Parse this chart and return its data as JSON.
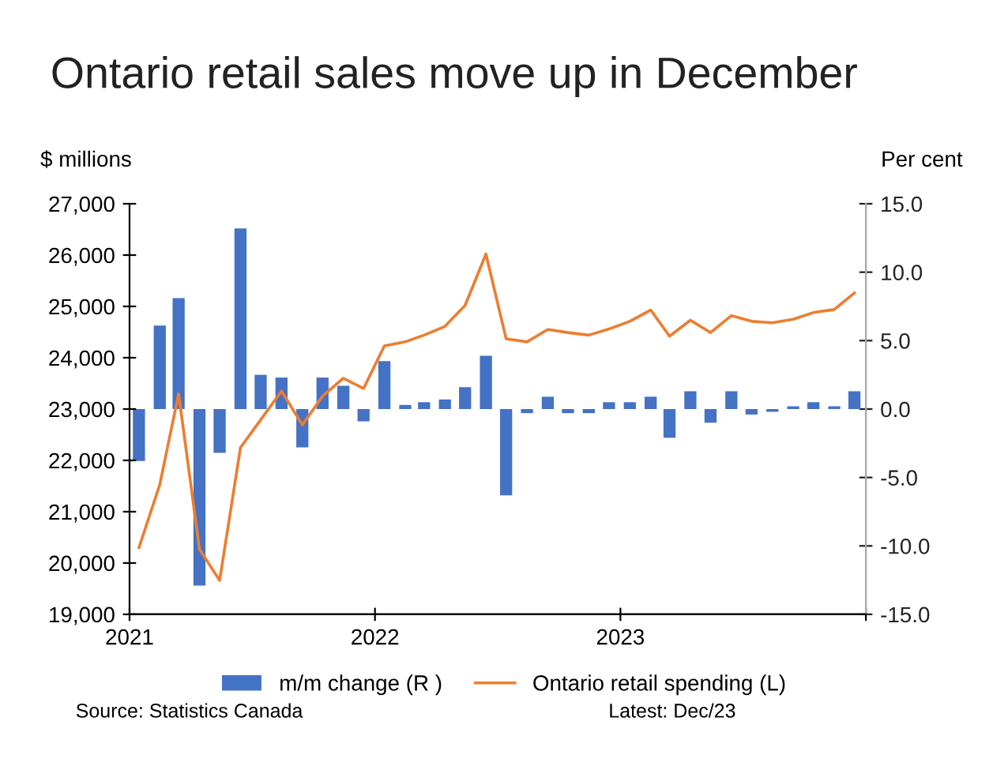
{
  "chart_data": {
    "type": "line",
    "title": "Ontario retail sales move up in December",
    "ylabel": "$ millions",
    "y2label": "Per cent",
    "x": [
      "2021-01-15",
      "2021-02-15",
      "2021-03-15",
      "2021-04-15",
      "2021-05-15",
      "2021-06-15",
      "2021-07-15",
      "2021-08-15",
      "2021-09-15",
      "2021-10-15",
      "2021-11-15",
      "2021-12-15",
      "2022-01-15",
      "2022-02-15",
      "2022-03-15",
      "2022-04-15",
      "2022-05-15",
      "2022-06-15",
      "2022-07-15",
      "2022-08-15",
      "2022-09-15",
      "2022-10-15",
      "2022-11-15",
      "2022-12-15",
      "2023-01-15",
      "2023-02-15",
      "2023-03-15",
      "2023-04-15",
      "2023-05-15",
      "2023-06-15",
      "2023-07-15",
      "2023-08-15",
      "2023-09-15",
      "2023-10-15",
      "2023-11-15",
      "2023-12-15"
    ],
    "series": [
      {
        "name": "m/m change (R )",
        "type": "bar",
        "axis": "y2",
        "color": "#4472c4",
        "values": [
          -3.8,
          6.1,
          8.1,
          -12.9,
          -3.2,
          13.2,
          2.5,
          2.3,
          -2.8,
          2.3,
          1.7,
          -0.9,
          3.5,
          0.3,
          0.5,
          0.7,
          1.6,
          3.9,
          -6.3,
          -0.3,
          0.9,
          -0.3,
          -0.3,
          0.5,
          0.5,
          0.9,
          -2.1,
          1.3,
          -1.0,
          1.3,
          -0.4,
          -0.2,
          0.2,
          0.5,
          0.2,
          1.3
        ]
      },
      {
        "name": "Ontario retail spending (L)",
        "color": "#ed7d31",
        "values": [
          20300,
          21530,
          23300,
          20270,
          19660,
          22250,
          22790,
          23350,
          22690,
          23250,
          23600,
          23400,
          24230,
          24310,
          24440,
          24610,
          25020,
          26020,
          24370,
          24310,
          24550,
          24490,
          24440,
          24560,
          24710,
          24930,
          24420,
          24730,
          24490,
          24820,
          24710,
          24680,
          24750,
          24880,
          24940,
          25260
        ]
      }
    ],
    "xlim": [
      "2021-01-01",
      "2024-01-01"
    ],
    "xticks": [
      {
        "value": "2021-01-01",
        "label": "2021"
      },
      {
        "value": "2022-01-01",
        "label": "2022"
      },
      {
        "value": "2023-01-01",
        "label": "2023"
      },
      {
        "value": "2024-01-01",
        "label": null
      }
    ],
    "ylim": [
      19000,
      27000
    ],
    "yticks": [
      {
        "value": 19000,
        "label": "19,000"
      },
      {
        "value": 20000,
        "label": "20,000"
      },
      {
        "value": 21000,
        "label": "21,000"
      },
      {
        "value": 22000,
        "label": "22,000"
      },
      {
        "value": 23000,
        "label": "23,000"
      },
      {
        "value": 24000,
        "label": "24,000"
      },
      {
        "value": 25000,
        "label": "25,000"
      },
      {
        "value": 26000,
        "label": "26,000"
      },
      {
        "value": 27000,
        "label": "27,000"
      }
    ],
    "y2lim": [
      -15,
      15
    ],
    "y2ticks": [
      {
        "value": -15,
        "label": "-15.0"
      },
      {
        "value": -10,
        "label": "-10.0"
      },
      {
        "value": -5,
        "label": "-5.0"
      },
      {
        "value": 0,
        "label": "0.0"
      },
      {
        "value": 5,
        "label": "5.0"
      },
      {
        "value": 10,
        "label": "10.0"
      },
      {
        "value": 15,
        "label": "15.0"
      }
    ],
    "legend": "bottom",
    "annotations": [
      "Source: Statistics Canada",
      "Latest: Dec/23"
    ]
  }
}
